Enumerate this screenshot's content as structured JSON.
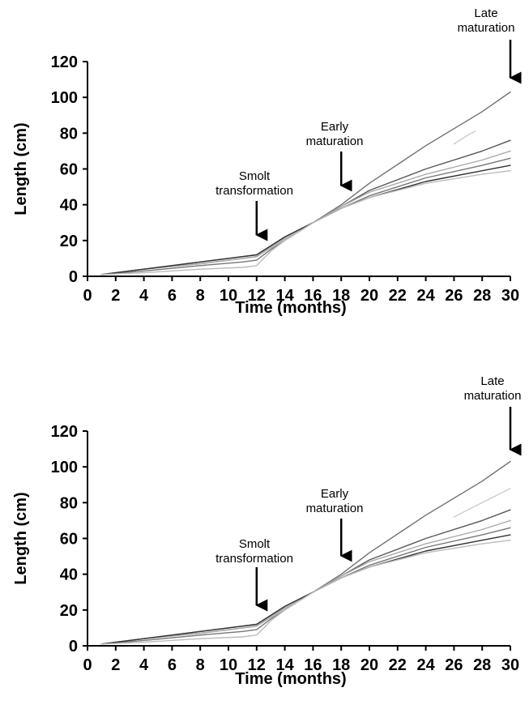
{
  "chart_data": [
    {
      "type": "line",
      "xlabel": "Time (months)",
      "ylabel": "Length (cm)",
      "xlim": [
        0,
        30
      ],
      "ylim": [
        0,
        120
      ],
      "xticks": [
        0,
        2,
        4,
        6,
        8,
        10,
        12,
        14,
        16,
        18,
        20,
        22,
        24,
        26,
        28,
        30
      ],
      "yticks": [
        0,
        20,
        40,
        60,
        80,
        100,
        120
      ],
      "grid": false,
      "series": [
        {
          "color": "#707070",
          "x": [
            1,
            4,
            8,
            11,
            12,
            13,
            14,
            15,
            16,
            18,
            20,
            24,
            28,
            30
          ],
          "y": [
            1,
            4,
            7,
            10,
            11,
            16,
            21,
            25,
            30,
            40,
            52,
            73,
            92,
            103
          ]
        },
        {
          "color": "#cccccc",
          "x": [
            26,
            27,
            27.5
          ],
          "y": [
            74,
            79,
            81
          ]
        },
        {
          "color": "#555555",
          "x": [
            1,
            4,
            8,
            11,
            12,
            13,
            14,
            15,
            16,
            18,
            20,
            24,
            28,
            30
          ],
          "y": [
            1,
            4,
            8,
            11,
            12,
            17,
            22,
            26,
            30,
            39,
            48,
            60,
            70,
            76
          ]
        },
        {
          "color": "#aaaaaa",
          "x": [
            1,
            4,
            8,
            11,
            12,
            13,
            14,
            15,
            16,
            18,
            20,
            24,
            28,
            30
          ],
          "y": [
            1,
            4,
            7,
            10,
            11,
            16,
            21,
            25,
            30,
            39,
            47,
            57,
            65,
            70
          ]
        },
        {
          "color": "#777777",
          "x": [
            1,
            4,
            8,
            11,
            12,
            13,
            14,
            15,
            16,
            18,
            20,
            24,
            28,
            30
          ],
          "y": [
            1,
            3,
            6,
            8,
            9,
            15,
            20,
            25,
            30,
            38,
            45,
            55,
            62,
            66
          ]
        },
        {
          "color": "#333333",
          "x": [
            1,
            4,
            8,
            11,
            12,
            13,
            14,
            15,
            16,
            18,
            20,
            24,
            28,
            30
          ],
          "y": [
            1,
            4,
            8,
            11,
            12,
            17,
            22,
            26,
            30,
            38,
            44,
            53,
            59,
            62
          ]
        },
        {
          "color": "#bbbbbb",
          "x": [
            1,
            4,
            8,
            11,
            12,
            13,
            14,
            15,
            16,
            18,
            20,
            24,
            28,
            30
          ],
          "y": [
            1,
            2,
            4,
            5,
            6,
            14,
            20,
            25,
            30,
            38,
            44,
            52,
            57,
            59
          ]
        }
      ],
      "annotations": [
        {
          "lines": [
            "Smolt",
            "transformation"
          ],
          "x": 12,
          "y": 10
        },
        {
          "lines": [
            "Early",
            "maturation"
          ],
          "x": 18,
          "y": 40
        },
        {
          "lines": [
            "Late",
            "maturation"
          ],
          "x": 30,
          "y": 103
        }
      ]
    },
    {
      "type": "line",
      "xlabel": "Time (months)",
      "ylabel": "Length (cm)",
      "xlim": [
        0,
        30
      ],
      "ylim": [
        0,
        120
      ],
      "xticks": [
        0,
        2,
        4,
        6,
        8,
        10,
        12,
        14,
        16,
        18,
        20,
        22,
        24,
        26,
        28,
        30
      ],
      "yticks": [
        0,
        20,
        40,
        60,
        80,
        100,
        120
      ],
      "grid": false,
      "series": [
        {
          "color": "#707070",
          "x": [
            1,
            4,
            8,
            11,
            12,
            13,
            14,
            15,
            16,
            18,
            20,
            24,
            28,
            30
          ],
          "y": [
            1,
            4,
            7,
            10,
            11,
            16,
            21,
            25,
            30,
            40,
            52,
            73,
            92,
            103
          ]
        },
        {
          "color": "#cccccc",
          "x": [
            26,
            28,
            30
          ],
          "y": [
            72,
            80,
            88
          ]
        },
        {
          "color": "#555555",
          "x": [
            1,
            4,
            8,
            11,
            12,
            13,
            14,
            15,
            16,
            18,
            20,
            24,
            28,
            30
          ],
          "y": [
            1,
            4,
            8,
            11,
            12,
            17,
            22,
            26,
            30,
            39,
            48,
            60,
            70,
            76
          ]
        },
        {
          "color": "#aaaaaa",
          "x": [
            1,
            4,
            8,
            11,
            12,
            13,
            14,
            15,
            16,
            18,
            20,
            24,
            28,
            30
          ],
          "y": [
            1,
            4,
            7,
            10,
            11,
            16,
            21,
            25,
            30,
            39,
            47,
            57,
            65,
            70
          ]
        },
        {
          "color": "#777777",
          "x": [
            1,
            4,
            8,
            11,
            12,
            13,
            14,
            15,
            16,
            18,
            20,
            24,
            28,
            30
          ],
          "y": [
            1,
            3,
            6,
            8,
            9,
            15,
            20,
            25,
            30,
            38,
            45,
            55,
            62,
            66
          ]
        },
        {
          "color": "#333333",
          "x": [
            1,
            4,
            8,
            11,
            12,
            13,
            14,
            15,
            16,
            18,
            20,
            24,
            28,
            30
          ],
          "y": [
            1,
            4,
            8,
            11,
            12,
            17,
            22,
            26,
            30,
            38,
            44,
            53,
            59,
            62
          ]
        },
        {
          "color": "#bbbbbb",
          "x": [
            1,
            4,
            8,
            11,
            12,
            13,
            14,
            15,
            16,
            18,
            20,
            24,
            28,
            30
          ],
          "y": [
            1,
            2,
            4,
            5,
            6,
            14,
            20,
            25,
            30,
            38,
            44,
            52,
            57,
            59
          ]
        }
      ],
      "annotations": [
        {
          "lines": [
            "Smolt",
            "transformation"
          ],
          "x": 12,
          "y": 10
        },
        {
          "lines": [
            "Early",
            "maturation"
          ],
          "x": 18,
          "y": 40
        },
        {
          "lines": [
            "Late",
            "maturation"
          ],
          "x": 30,
          "y": 103
        }
      ]
    }
  ]
}
